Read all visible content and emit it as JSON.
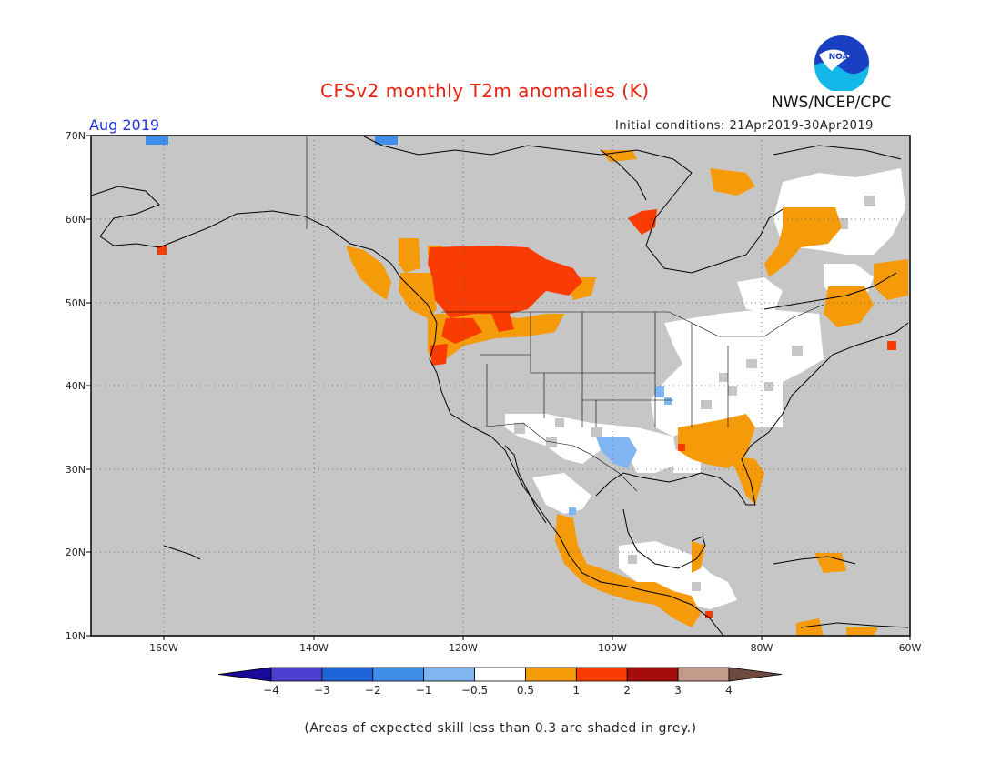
{
  "title": "CFSv2 monthly T2m anomalies (K)",
  "agency": "NWS/NCEP/CPC",
  "logo_text": "NOAA",
  "valid_month": "Aug 2019",
  "initial_conditions": "Initial conditions: 21Apr2019-30Apr2019",
  "footnote": "(Areas of expected skill less than 0.3 are shaded in grey.)",
  "lat_labels": [
    "70N",
    "60N",
    "50N",
    "40N",
    "30N",
    "20N",
    "10N"
  ],
  "lon_labels": [
    "160W",
    "140W",
    "120W",
    "100W",
    "80W",
    "60W"
  ],
  "colorbar": {
    "labels": [
      "−4",
      "−3",
      "−2",
      "−1",
      "−0.5",
      "0.5",
      "1",
      "2",
      "3",
      "4"
    ],
    "colors": [
      "#1a0a9a",
      "#4a3fcf",
      "#1f63d8",
      "#3f8fea",
      "#7fb5f2",
      "#ffffff",
      "#f59a08",
      "#fb3c02",
      "#a40a0a",
      "#c49a8a",
      "#6e4a3f"
    ]
  },
  "colors": {
    "grey_low_skill": "#c6c6c6",
    "near_normal": "#ffffff",
    "warm_0.5_1": "#f59a08",
    "warm_1_2": "#fb3c02",
    "cool_-1_-0.5": "#7fb5f2",
    "cool_-2_-1": "#3f8fea",
    "title_red": "#e8220f",
    "month_blue": "#2233dd"
  }
}
